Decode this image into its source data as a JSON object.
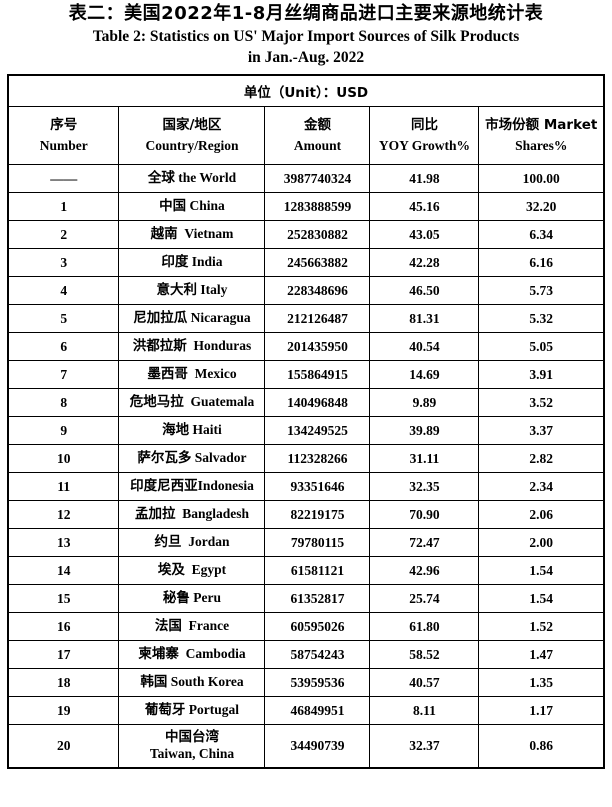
{
  "title": {
    "line1_zh": "表二：美国2022年1-8月丝绸商品进口主要来源地统计表",
    "line2_en": "Table 2: Statistics on US' Major Import Sources of Silk Products",
    "line3_en": "in Jan.-Aug. 2022"
  },
  "table": {
    "unit_label": "单位（Unit）：USD",
    "headers": [
      {
        "line1": "序号",
        "line2": "Number"
      },
      {
        "line1": "国家/地区",
        "line2": "Country/Region"
      },
      {
        "line1": "金额",
        "line2": "Amount"
      },
      {
        "line1": "同比",
        "line2": "YOY Growth%"
      },
      {
        "line1": "市场份额  Market",
        "line2": "Shares%"
      }
    ],
    "rows": [
      {
        "number": "——",
        "country": "全球 the World",
        "amount": "3987740324",
        "yoy": "41.98",
        "share": "100.00"
      },
      {
        "number": "1",
        "country": "中国 China",
        "amount": "1283888599",
        "yoy": "45.16",
        "share": "32.20"
      },
      {
        "number": "2",
        "country": "越南  Vietnam",
        "amount": "252830882",
        "yoy": "43.05",
        "share": "6.34"
      },
      {
        "number": "3",
        "country": "印度 India",
        "amount": "245663882",
        "yoy": "42.28",
        "share": "6.16"
      },
      {
        "number": "4",
        "country": "意大利 Italy",
        "amount": "228348696",
        "yoy": "46.50",
        "share": "5.73"
      },
      {
        "number": "5",
        "country": "尼加拉瓜 Nicaragua",
        "amount": "212126487",
        "yoy": "81.31",
        "share": "5.32"
      },
      {
        "number": "6",
        "country": "洪都拉斯  Honduras",
        "amount": "201435950",
        "yoy": "40.54",
        "share": "5.05"
      },
      {
        "number": "7",
        "country": "墨西哥  Mexico",
        "amount": "155864915",
        "yoy": "14.69",
        "share": "3.91"
      },
      {
        "number": "8",
        "country": "危地马拉  Guatemala",
        "amount": "140496848",
        "yoy": "9.89",
        "share": "3.52"
      },
      {
        "number": "9",
        "country": "海地 Haiti",
        "amount": "134249525",
        "yoy": "39.89",
        "share": "3.37"
      },
      {
        "number": "10",
        "country": "萨尔瓦多 Salvador",
        "amount": "112328266",
        "yoy": "31.11",
        "share": "2.82"
      },
      {
        "number": "11",
        "country": "印度尼西亚Indonesia",
        "amount": "93351646",
        "yoy": "32.35",
        "share": "2.34"
      },
      {
        "number": "12",
        "country": "孟加拉  Bangladesh",
        "amount": "82219175",
        "yoy": "70.90",
        "share": "2.06"
      },
      {
        "number": "13",
        "country": "约旦  Jordan",
        "amount": "79780115",
        "yoy": "72.47",
        "share": "2.00"
      },
      {
        "number": "14",
        "country": "埃及  Egypt",
        "amount": "61581121",
        "yoy": "42.96",
        "share": "1.54"
      },
      {
        "number": "15",
        "country": "秘鲁 Peru",
        "amount": "61352817",
        "yoy": "25.74",
        "share": "1.54"
      },
      {
        "number": "16",
        "country": "法国  France",
        "amount": "60595026",
        "yoy": "61.80",
        "share": "1.52"
      },
      {
        "number": "17",
        "country": "柬埔寨  Cambodia",
        "amount": "58754243",
        "yoy": "58.52",
        "share": "1.47"
      },
      {
        "number": "18",
        "country": "韩国 South Korea",
        "amount": "53959536",
        "yoy": "40.57",
        "share": "1.35"
      },
      {
        "number": "19",
        "country": "葡萄牙 Portugal",
        "amount": "46849951",
        "yoy": "8.11",
        "share": "1.17"
      },
      {
        "number": "20",
        "country": "中国台湾\nTaiwan, China",
        "amount": "34490739",
        "yoy": "32.37",
        "share": "0.86"
      }
    ]
  }
}
